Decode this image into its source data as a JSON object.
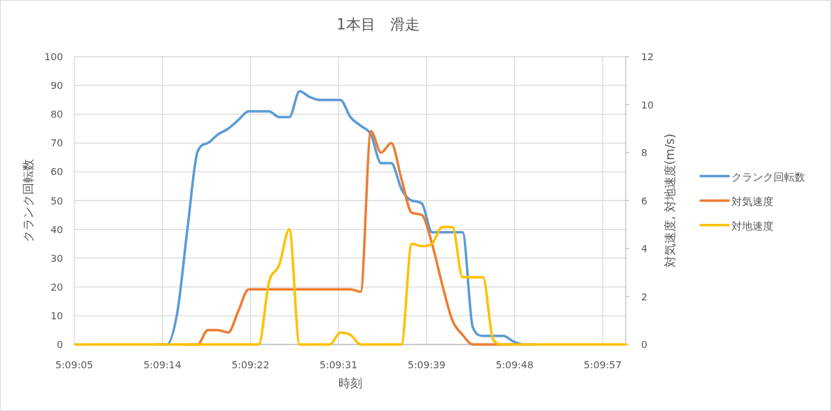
{
  "chart_data": {
    "type": "line",
    "title": "1本目　滑走",
    "xlabel": "時刻",
    "ylabel": "クランク回転数",
    "y2label": "対気速度, 対地速度(m/s)",
    "x": [
      5.151389,
      5.151667,
      5.151944,
      5.152222,
      5.1525,
      5.152778,
      5.153056,
      5.153333,
      5.153611,
      5.153889,
      5.154167,
      5.154444,
      5.154722,
      5.155,
      5.155278,
      5.155556,
      5.155833,
      5.156111,
      5.156389,
      5.156667,
      5.156944,
      5.157222,
      5.1575,
      5.157778,
      5.158056,
      5.158333,
      5.158611,
      5.158889,
      5.159167,
      5.159444,
      5.159722,
      5.16,
      5.160278,
      5.160556,
      5.160833,
      5.161111,
      5.161389,
      5.161667,
      5.161944,
      5.162222,
      5.1625,
      5.162778,
      5.163056,
      5.163333,
      5.163611,
      5.163889,
      5.164167,
      5.164444,
      5.164722,
      5.165,
      5.165278,
      5.165556,
      5.165833,
      5.166111,
      5.166389
    ],
    "xlim": [
      5.151361,
      5.166389
    ],
    "xticks": [
      {
        "value": 5.151361,
        "label": "5:09:05"
      },
      {
        "value": 5.153761,
        "label": "5:09:14"
      },
      {
        "value": 5.156161,
        "label": "5:09:22"
      },
      {
        "value": 5.158561,
        "label": "5:09:31"
      },
      {
        "value": 5.160961,
        "label": "5:09:39"
      },
      {
        "value": 5.163361,
        "label": "5:09:48"
      },
      {
        "value": 5.165761,
        "label": "5:09:57"
      }
    ],
    "ylim": [
      0,
      100
    ],
    "yticks": [
      0,
      10,
      20,
      30,
      40,
      50,
      60,
      70,
      80,
      90,
      100
    ],
    "y2lim": [
      0,
      12
    ],
    "y2ticks": [
      0,
      2,
      4,
      6,
      8,
      10,
      12
    ],
    "grid": true,
    "legend": "right",
    "series": [
      {
        "name": "クランク回転数",
        "color": "#5b9bd5",
        "values": [
          null,
          null,
          null,
          null,
          null,
          null,
          null,
          null,
          0,
          0,
          11,
          40,
          67,
          70,
          73,
          75,
          78,
          81,
          81,
          81,
          79,
          79,
          88,
          86,
          85,
          85,
          85,
          79,
          76,
          73,
          63,
          63,
          54,
          50,
          49,
          39,
          39,
          39,
          39,
          6,
          3,
          3,
          3,
          1,
          0,
          0,
          null,
          null,
          null,
          null,
          null,
          null,
          null,
          null,
          null
        ]
      },
      {
        "name": "対気速度",
        "color": "#ed7d31",
        "axis": "y2",
        "values": [
          null,
          null,
          null,
          null,
          null,
          null,
          null,
          null,
          null,
          null,
          null,
          0,
          0,
          0.6,
          0.6,
          0.5,
          1.4,
          2.3,
          2.3,
          2.3,
          2.3,
          2.3,
          2.3,
          2.3,
          2.3,
          2.3,
          2.3,
          2.3,
          2.2,
          8.9,
          8.0,
          8.4,
          6.9,
          5.5,
          5.4,
          4.2,
          2.5,
          1.0,
          0.4,
          0,
          0,
          0,
          0,
          0,
          null,
          null,
          null,
          null,
          null,
          null,
          null,
          null,
          null,
          null,
          null
        ]
      },
      {
        "name": "対地速度",
        "color": "#ffc000",
        "axis": "y2",
        "values": [
          0,
          0,
          0,
          0,
          0,
          0,
          0,
          0,
          0,
          0,
          0,
          0,
          0,
          0,
          0,
          0,
          0,
          0,
          0,
          2.6,
          3.3,
          4.8,
          0,
          0,
          0,
          0,
          0.5,
          0.4,
          0,
          0,
          0,
          0,
          0,
          4.2,
          4.1,
          4.2,
          4.9,
          4.9,
          2.8,
          2.8,
          2.8,
          0.2,
          0,
          0,
          0,
          0,
          0,
          0,
          0,
          0,
          0,
          0,
          0,
          0,
          0
        ]
      }
    ]
  }
}
